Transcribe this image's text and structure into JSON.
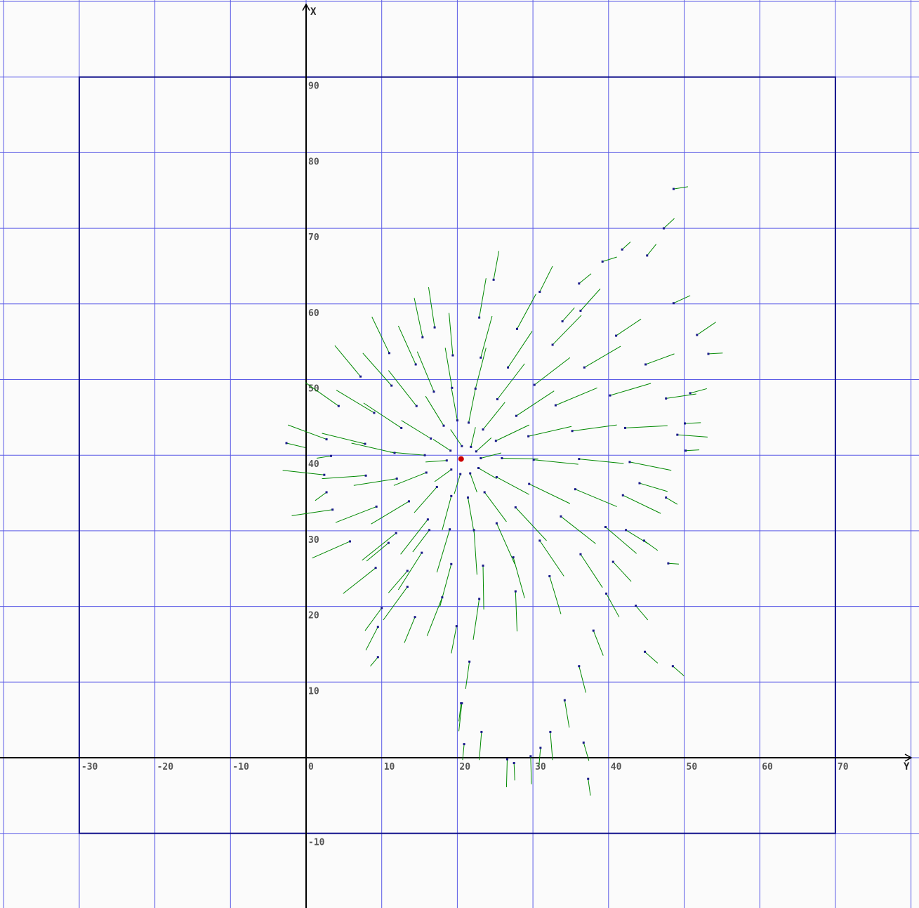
{
  "chart_data": {
    "type": "scatter",
    "description_variant": "vector-field",
    "title": "",
    "horizontal_axis_label": "Y",
    "vertical_axis_label": "X",
    "horizontal_range": [
      -40,
      80
    ],
    "vertical_range": [
      -20,
      100
    ],
    "horizontal_ticks": [
      "-30",
      "-20",
      "-10",
      "0",
      "10",
      "20",
      "30",
      "40",
      "50",
      "60",
      "70"
    ],
    "vertical_ticks": [
      "-10",
      "10",
      "20",
      "30",
      "40",
      "50",
      "60",
      "70",
      "80",
      "90"
    ],
    "grid": true,
    "boundary_rect": {
      "y_min": -30,
      "y_max": 70,
      "x_min": -10,
      "x_max": 90
    },
    "center_point": {
      "y": 20.5,
      "x": 39.5
    },
    "colors": {
      "background": "#fbfbfb",
      "grid": "#5a5ae6",
      "boundary": "#10108a",
      "axis": "#000000",
      "vector": "#008800",
      "vector_tip": "#1a1a8a",
      "center": "#cc0000"
    },
    "vector_note": "Each vector: point (y, x) and displacement (dy, dx) in data units; many short green arrows fan outward from a cluster near (20, 40).",
    "vectors": [
      {
        "y": 20.6,
        "x": 41.2,
        "dy": -1.5,
        "dx": 2.2
      },
      {
        "y": 21.8,
        "x": 41.1,
        "dy": 0.6,
        "dx": 2.6
      },
      {
        "y": 22.5,
        "x": 40.5,
        "dy": 2.0,
        "dx": 1.8
      },
      {
        "y": 23.1,
        "x": 39.6,
        "dy": 2.7,
        "dx": 0.7
      },
      {
        "y": 22.8,
        "x": 38.3,
        "dy": 2.4,
        "dx": -1.4
      },
      {
        "y": 21.7,
        "x": 37.6,
        "dy": 0.9,
        "dx": -2.5
      },
      {
        "y": 20.4,
        "x": 37.5,
        "dy": -0.8,
        "dx": -2.6
      },
      {
        "y": 19.2,
        "x": 38.1,
        "dy": -2.2,
        "dx": -1.6
      },
      {
        "y": 18.6,
        "x": 39.3,
        "dy": -2.8,
        "dx": -0.2
      },
      {
        "y": 19.1,
        "x": 40.6,
        "dy": -2.3,
        "dx": 1.5
      },
      {
        "y": 20.0,
        "x": 44.6,
        "dy": -0.8,
        "dx": 4.4
      },
      {
        "y": 21.5,
        "x": 44.3,
        "dy": 0.9,
        "dx": 4.5
      },
      {
        "y": 23.4,
        "x": 43.4,
        "dy": 2.9,
        "dx": 3.6
      },
      {
        "y": 25.1,
        "x": 41.9,
        "dy": 4.4,
        "dx": 2.1
      },
      {
        "y": 25.9,
        "x": 39.6,
        "dy": 4.8,
        "dx": -0.1
      },
      {
        "y": 25.2,
        "x": 37.1,
        "dy": 4.3,
        "dx": -2.3
      },
      {
        "y": 23.6,
        "x": 35.1,
        "dy": 2.9,
        "dx": -3.9
      },
      {
        "y": 21.4,
        "x": 34.4,
        "dy": 0.8,
        "dx": -4.6
      },
      {
        "y": 19.2,
        "x": 34.6,
        "dy": -1.2,
        "dx": -4.5
      },
      {
        "y": 17.3,
        "x": 35.8,
        "dy": -3.0,
        "dx": -3.4
      },
      {
        "y": 15.9,
        "x": 37.7,
        "dy": -4.3,
        "dx": -1.7
      },
      {
        "y": 15.7,
        "x": 40.0,
        "dy": -4.6,
        "dx": 0.4
      },
      {
        "y": 16.5,
        "x": 42.2,
        "dy": -3.9,
        "dx": 2.4
      },
      {
        "y": 18.2,
        "x": 43.9,
        "dy": -2.4,
        "dx": 3.9
      },
      {
        "y": 19.3,
        "x": 48.9,
        "dy": -0.9,
        "dx": 5.3
      },
      {
        "y": 22.4,
        "x": 48.8,
        "dy": 1.4,
        "dx": 5.4
      },
      {
        "y": 25.3,
        "x": 47.4,
        "dy": 3.6,
        "dx": 4.7
      },
      {
        "y": 27.8,
        "x": 45.2,
        "dy": 5.0,
        "dx": 3.3
      },
      {
        "y": 29.4,
        "x": 42.5,
        "dy": 5.7,
        "dx": 1.3
      },
      {
        "y": 30.1,
        "x": 39.4,
        "dy": 5.9,
        "dx": -0.6
      },
      {
        "y": 29.5,
        "x": 36.2,
        "dy": 5.4,
        "dx": -2.6
      },
      {
        "y": 27.7,
        "x": 33.1,
        "dy": 4.1,
        "dx": -4.4
      },
      {
        "y": 25.2,
        "x": 31.0,
        "dy": 2.4,
        "dx": -5.4
      },
      {
        "y": 22.2,
        "x": 30.1,
        "dy": 0.4,
        "dx": -5.9
      },
      {
        "y": 19.0,
        "x": 30.2,
        "dy": -1.7,
        "dx": -5.7
      },
      {
        "y": 16.1,
        "x": 31.5,
        "dy": -3.6,
        "dx": -4.6
      },
      {
        "y": 13.6,
        "x": 33.9,
        "dy": -5.0,
        "dx": -3.0
      },
      {
        "y": 12.0,
        "x": 36.9,
        "dy": -5.7,
        "dx": -0.9
      },
      {
        "y": 11.7,
        "x": 40.3,
        "dy": -5.7,
        "dx": 1.3
      },
      {
        "y": 12.6,
        "x": 43.6,
        "dy": -5.0,
        "dx": 3.3
      },
      {
        "y": 14.6,
        "x": 46.5,
        "dy": -3.7,
        "dx": 4.7
      },
      {
        "y": 16.9,
        "x": 48.4,
        "dy": -2.2,
        "dx": 5.3
      },
      {
        "y": 19.4,
        "x": 53.2,
        "dy": -0.5,
        "dx": 5.6
      },
      {
        "y": 23.1,
        "x": 52.9,
        "dy": 1.5,
        "dx": 5.5
      },
      {
        "y": 26.7,
        "x": 51.6,
        "dy": 3.2,
        "dx": 4.8
      },
      {
        "y": 30.2,
        "x": 49.3,
        "dy": 4.7,
        "dx": 3.6
      },
      {
        "y": 33.0,
        "x": 46.6,
        "dy": 5.5,
        "dx": 2.3
      },
      {
        "y": 35.2,
        "x": 43.2,
        "dy": 5.9,
        "dx": 0.8
      },
      {
        "y": 36.1,
        "x": 39.5,
        "dy": 5.9,
        "dx": -0.6
      },
      {
        "y": 35.6,
        "x": 35.5,
        "dy": 5.5,
        "dx": -2.3
      },
      {
        "y": 33.7,
        "x": 31.9,
        "dy": 4.6,
        "dx": -3.6
      },
      {
        "y": 30.9,
        "x": 28.7,
        "dy": 3.2,
        "dx": -4.7
      },
      {
        "y": 27.4,
        "x": 26.5,
        "dy": 1.5,
        "dx": -5.4
      },
      {
        "y": 23.4,
        "x": 25.4,
        "dy": 0.1,
        "dx": -5.8
      },
      {
        "y": 19.2,
        "x": 25.6,
        "dy": -1.5,
        "dx": -5.6
      },
      {
        "y": 15.3,
        "x": 27.1,
        "dy": -3.1,
        "dx": -4.9
      },
      {
        "y": 11.9,
        "x": 29.7,
        "dy": -4.5,
        "dx": -3.6
      },
      {
        "y": 9.3,
        "x": 33.2,
        "dy": -5.4,
        "dx": -2.1
      },
      {
        "y": 7.9,
        "x": 37.3,
        "dy": -5.8,
        "dx": -0.4
      },
      {
        "y": 7.8,
        "x": 41.5,
        "dy": -5.7,
        "dx": 1.4
      },
      {
        "y": 9.0,
        "x": 45.6,
        "dy": -5.0,
        "dx": 3.0
      },
      {
        "y": 11.3,
        "x": 49.2,
        "dy": -3.8,
        "dx": 4.3
      },
      {
        "y": 14.5,
        "x": 52.0,
        "dy": -2.3,
        "dx": 5.1
      },
      {
        "y": 17.0,
        "x": 56.9,
        "dy": -0.8,
        "dx": 5.3
      },
      {
        "y": 22.9,
        "x": 58.2,
        "dy": 0.9,
        "dx": 5.2
      },
      {
        "y": 27.9,
        "x": 56.7,
        "dy": 2.5,
        "dx": 4.6
      },
      {
        "y": 32.6,
        "x": 54.6,
        "dy": 3.8,
        "dx": 3.9
      },
      {
        "y": 36.8,
        "x": 51.6,
        "dy": 4.8,
        "dx": 2.8
      },
      {
        "y": 40.2,
        "x": 47.9,
        "dy": 5.4,
        "dx": 1.6
      },
      {
        "y": 42.2,
        "x": 43.6,
        "dy": 5.6,
        "dx": 0.3
      },
      {
        "y": 42.8,
        "x": 39.1,
        "dy": 5.5,
        "dx": -1.1
      },
      {
        "y": 41.9,
        "x": 34.7,
        "dy": 5.0,
        "dx": -2.4
      },
      {
        "y": 39.6,
        "x": 30.5,
        "dy": 4.1,
        "dx": -3.5
      },
      {
        "y": 36.3,
        "x": 26.9,
        "dy": 2.9,
        "dx": -4.4
      },
      {
        "y": 32.2,
        "x": 24.0,
        "dy": 1.5,
        "dx": -5.0
      },
      {
        "y": 27.7,
        "x": 22.0,
        "dy": 0.2,
        "dx": -5.3
      },
      {
        "y": 22.9,
        "x": 21.0,
        "dy": -0.8,
        "dx": -5.4
      },
      {
        "y": 18.0,
        "x": 21.2,
        "dy": -2.0,
        "dx": -5.1
      },
      {
        "y": 13.4,
        "x": 22.6,
        "dy": -3.2,
        "dx": -4.4
      },
      {
        "y": 9.2,
        "x": 25.1,
        "dy": -4.3,
        "dx": -3.4
      },
      {
        "y": 5.8,
        "x": 28.6,
        "dy": -5.0,
        "dx": -2.2
      },
      {
        "y": 3.5,
        "x": 32.8,
        "dy": -5.4,
        "dx": -0.8
      },
      {
        "y": 2.4,
        "x": 37.4,
        "dy": -5.5,
        "dx": 0.6
      },
      {
        "y": 2.7,
        "x": 42.1,
        "dy": -5.1,
        "dx": 1.9
      },
      {
        "y": 4.3,
        "x": 46.5,
        "dy": -4.4,
        "dx": 3.1
      },
      {
        "y": 7.2,
        "x": 50.4,
        "dy": -3.4,
        "dx": 4.1
      },
      {
        "y": 11.0,
        "x": 53.5,
        "dy": -2.3,
        "dx": 4.8
      },
      {
        "y": 15.4,
        "x": 55.6,
        "dy": -1.1,
        "dx": 5.2
      },
      {
        "y": 24.8,
        "x": 63.2,
        "dy": 0.7,
        "dx": 3.8
      },
      {
        "y": 30.9,
        "x": 61.6,
        "dy": 1.7,
        "dx": 3.4
      },
      {
        "y": 36.3,
        "x": 59.1,
        "dy": 2.6,
        "dx": 2.9
      },
      {
        "y": 41.0,
        "x": 55.8,
        "dy": 3.3,
        "dx": 2.2
      },
      {
        "y": 44.9,
        "x": 52.0,
        "dy": 3.8,
        "dx": 1.4
      },
      {
        "y": 47.6,
        "x": 47.5,
        "dy": 4.0,
        "dx": 0.6
      },
      {
        "y": 49.1,
        "x": 42.7,
        "dy": 4.0,
        "dx": -0.3
      },
      {
        "y": 44.1,
        "x": 36.3,
        "dy": 3.7,
        "dx": -1.1
      },
      {
        "y": 42.3,
        "x": 30.1,
        "dy": 3.1,
        "dx": -1.9
      },
      {
        "y": 40.6,
        "x": 25.9,
        "dy": 2.4,
        "dx": -2.6
      },
      {
        "y": 39.7,
        "x": 21.7,
        "dy": 1.7,
        "dx": -3.1
      },
      {
        "y": 38.0,
        "x": 16.8,
        "dy": 1.3,
        "dx": -3.3
      },
      {
        "y": 36.1,
        "x": 12.1,
        "dy": 0.9,
        "dx": -3.5
      },
      {
        "y": 34.2,
        "x": 7.6,
        "dy": 0.6,
        "dx": -3.6
      },
      {
        "y": 32.3,
        "x": 3.4,
        "dy": 0.3,
        "dx": -3.7
      },
      {
        "y": 29.7,
        "x": 0.2,
        "dy": 0.1,
        "dx": -3.7
      },
      {
        "y": 26.6,
        "x": -0.2,
        "dy": -0.1,
        "dx": -3.7
      },
      {
        "y": 23.2,
        "x": 3.4,
        "dy": -0.3,
        "dx": -3.7
      },
      {
        "y": 20.6,
        "x": 7.2,
        "dy": -0.4,
        "dx": -3.7
      },
      {
        "y": 21.6,
        "x": 12.7,
        "dy": -0.5,
        "dx": -3.6
      },
      {
        "y": 19.9,
        "x": 17.4,
        "dy": -0.7,
        "dx": -3.6
      },
      {
        "y": 14.4,
        "x": 18.6,
        "dy": -1.4,
        "dx": -3.4
      },
      {
        "y": 10.0,
        "x": 19.8,
        "dy": -2.2,
        "dx": -3.0
      },
      {
        "y": 13.4,
        "x": 24.7,
        "dy": -2.5,
        "dx": -2.9
      },
      {
        "y": 10.9,
        "x": 28.4,
        "dy": -2.9,
        "dx": -2.4
      },
      {
        "y": 16.3,
        "x": 30.1,
        "dy": -2.2,
        "dx": -2.9
      },
      {
        "y": 48.6,
        "x": 75.2,
        "dy": 1.9,
        "dx": 0.3
      },
      {
        "y": 47.3,
        "x": 70.0,
        "dy": 1.4,
        "dx": 1.3
      },
      {
        "y": 45.1,
        "x": 66.4,
        "dy": 1.2,
        "dx": 1.5
      },
      {
        "y": 41.8,
        "x": 67.2,
        "dy": 1.1,
        "dx": 1.0
      },
      {
        "y": 39.2,
        "x": 65.6,
        "dy": 1.9,
        "dx": 0.6
      },
      {
        "y": 36.1,
        "x": 62.7,
        "dy": 1.6,
        "dx": 1.3
      },
      {
        "y": 33.9,
        "x": 57.7,
        "dy": 1.6,
        "dx": 1.8
      },
      {
        "y": 48.6,
        "x": 60.1,
        "dy": 2.2,
        "dx": 1.0
      },
      {
        "y": 51.7,
        "x": 55.9,
        "dy": 2.5,
        "dx": 1.7
      },
      {
        "y": 53.2,
        "x": 53.4,
        "dy": 1.9,
        "dx": 0.1
      },
      {
        "y": 50.8,
        "x": 48.2,
        "dy": 2.2,
        "dx": 0.6
      },
      {
        "y": 50.1,
        "x": 44.2,
        "dy": 2.1,
        "dx": 0.1
      },
      {
        "y": 50.2,
        "x": 40.6,
        "dy": 1.8,
        "dx": 0.1
      },
      {
        "y": 47.6,
        "x": 34.4,
        "dy": 1.5,
        "dx": -0.9
      },
      {
        "y": 44.7,
        "x": 28.7,
        "dy": 1.8,
        "dx": -1.3
      },
      {
        "y": 47.9,
        "x": 25.7,
        "dy": 1.4,
        "dx": -0.1
      },
      {
        "y": 48.5,
        "x": 12.1,
        "dy": 1.5,
        "dx": -1.3
      },
      {
        "y": 44.8,
        "x": 14.0,
        "dy": 1.7,
        "dx": -1.5
      },
      {
        "y": 43.6,
        "x": 20.1,
        "dy": 1.6,
        "dx": -1.9
      },
      {
        "y": 36.7,
        "x": 2.0,
        "dy": 0.7,
        "dx": -2.4
      },
      {
        "y": 37.3,
        "x": -2.8,
        "dy": 0.3,
        "dx": -2.2
      },
      {
        "y": 31.0,
        "x": 1.3,
        "dy": -0.2,
        "dx": -2.4
      },
      {
        "y": 27.5,
        "x": -0.7,
        "dy": 0.1,
        "dx": -2.3
      },
      {
        "y": 20.5,
        "x": 7.2,
        "dy": -0.3,
        "dx": -2.4
      },
      {
        "y": 20.9,
        "x": 1.8,
        "dy": -0.2,
        "dx": -2.1
      },
      {
        "y": 9.5,
        "x": 17.3,
        "dy": -1.6,
        "dx": -3.1
      },
      {
        "y": 9.5,
        "x": 13.3,
        "dy": -1.0,
        "dx": -1.2
      },
      {
        "y": 2.7,
        "x": 35.1,
        "dy": -1.5,
        "dx": -1.1
      },
      {
        "y": -2.6,
        "x": 41.6,
        "dy": 2.5,
        "dx": -0.6
      },
      {
        "y": 3.3,
        "x": 39.9,
        "dy": -1.9,
        "dx": -0.3
      }
    ]
  }
}
